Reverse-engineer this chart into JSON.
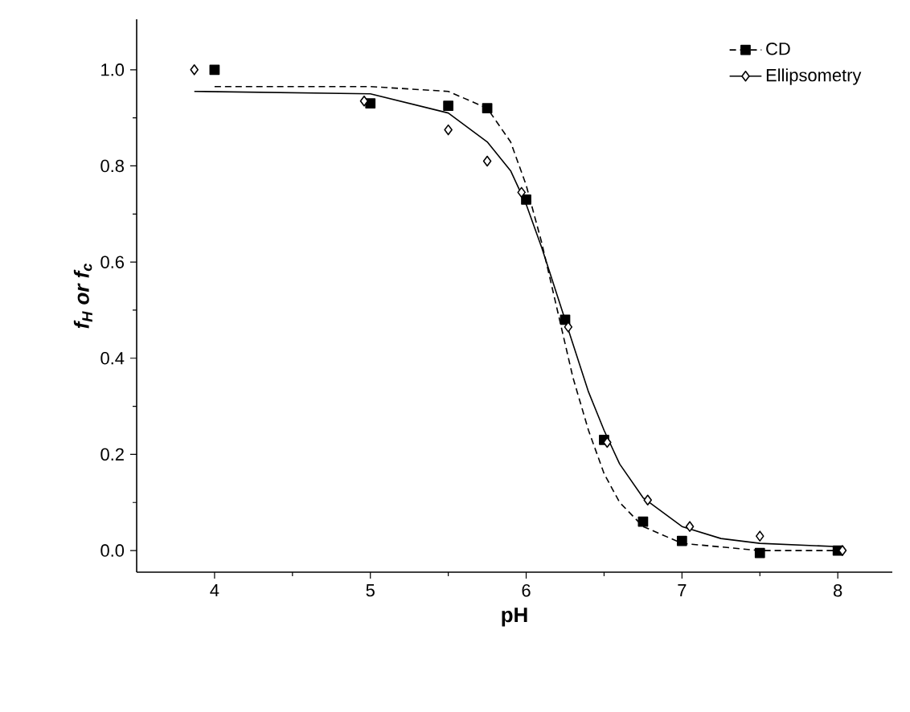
{
  "chart_data": {
    "type": "scatter",
    "xlabel": "pH",
    "ylabel": "f$_{H}$ or f$_{c}$",
    "xlim": [
      3.5,
      8.35
    ],
    "ylim": [
      -0.045,
      1.105
    ],
    "xticks": [
      4,
      5,
      6,
      7,
      8
    ],
    "yticks": [
      {
        "value": 0,
        "label": "0.0"
      },
      {
        "value": 0.2,
        "label": "0.2"
      },
      {
        "value": 0.4,
        "label": "0.4"
      },
      {
        "value": 0.6,
        "label": "0.6"
      },
      {
        "value": 0.8,
        "label": "0.8"
      },
      {
        "value": 1,
        "label": "1.0"
      }
    ],
    "legend": "top right",
    "grid": false,
    "series": [
      {
        "name": "CD",
        "color": "#000000",
        "marker": "square",
        "x": [
          4,
          5,
          5.5,
          5.75,
          6,
          6.25,
          6.5,
          6.75,
          7,
          7.5,
          8
        ],
        "values": [
          1.0,
          0.93,
          0.925,
          0.92,
          0.73,
          0.48,
          0.23,
          0.06,
          0.02,
          -0.005,
          0.0
        ]
      },
      {
        "name": "Ellipsometry",
        "color": "#000000",
        "marker": "diamond",
        "x": [
          3.87,
          4.96,
          5.5,
          5.75,
          5.97,
          6.27,
          6.52,
          6.78,
          7.05,
          7.5,
          8.03
        ],
        "values": [
          1.0,
          0.935,
          0.875,
          0.81,
          0.745,
          0.465,
          0.225,
          0.105,
          0.05,
          0.03,
          0.0
        ]
      },
      {
        "type": "line",
        "color": "#000000",
        "line_style": "dashed",
        "marker": "none",
        "x": [
          4,
          5,
          5.5,
          5.75,
          5.9,
          6.0,
          6.1,
          6.2,
          6.3,
          6.4,
          6.5,
          6.6,
          6.75,
          7,
          7.5,
          8
        ],
        "values": [
          0.965,
          0.965,
          0.955,
          0.92,
          0.85,
          0.76,
          0.64,
          0.5,
          0.36,
          0.25,
          0.16,
          0.1,
          0.05,
          0.015,
          0.0,
          0.0
        ]
      },
      {
        "type": "line",
        "color": "#000000",
        "line_style": "solid",
        "marker": "none",
        "x": [
          3.87,
          5,
          5.5,
          5.75,
          5.9,
          6.0,
          6.1,
          6.2,
          6.3,
          6.4,
          6.5,
          6.6,
          6.75,
          7,
          7.25,
          7.5,
          8
        ],
        "values": [
          0.955,
          0.95,
          0.91,
          0.85,
          0.79,
          0.72,
          0.63,
          0.53,
          0.43,
          0.33,
          0.25,
          0.18,
          0.11,
          0.05,
          0.025,
          0.015,
          0.008
        ]
      }
    ]
  }
}
